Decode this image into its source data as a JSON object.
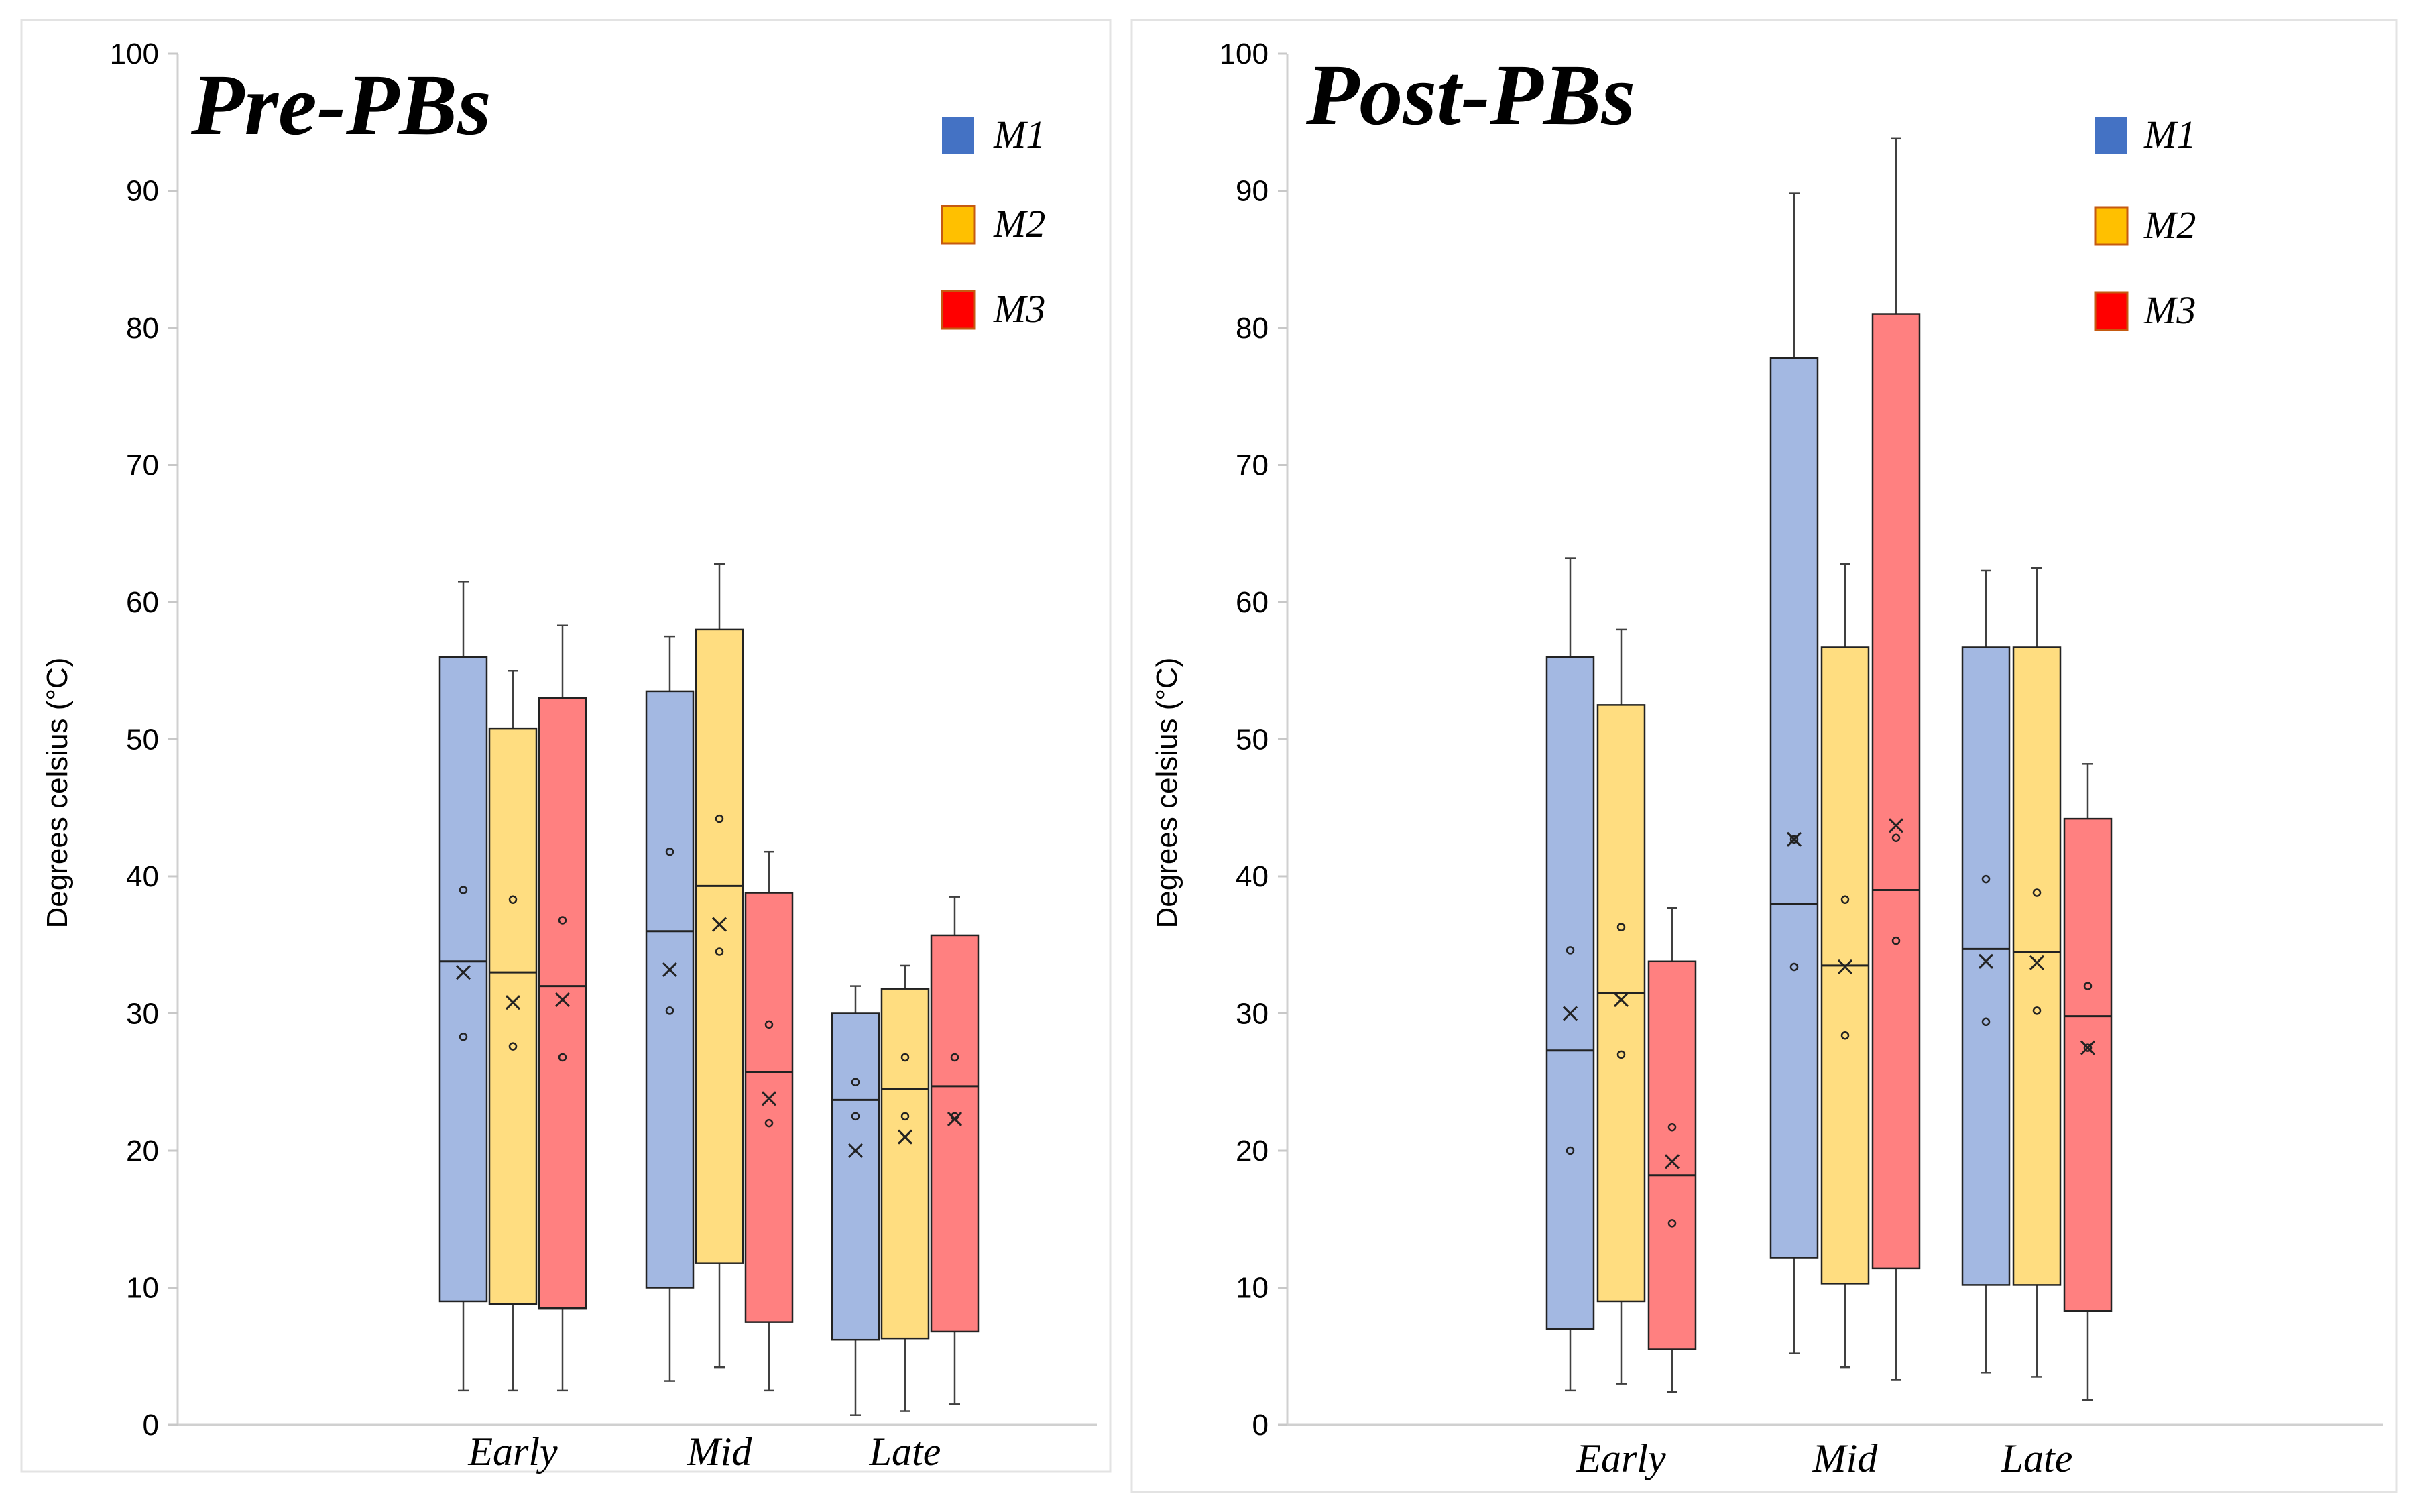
{
  "chart_data": [
    {
      "type": "box",
      "title": "Pre-PBs",
      "ylabel": "Degrees celsius (°C)",
      "ylim": [
        0,
        100
      ],
      "yticks": [
        "0",
        "10",
        "20",
        "30",
        "40",
        "50",
        "60",
        "70",
        "80",
        "90",
        "100"
      ],
      "categories": [
        "Early",
        "Mid",
        "Late"
      ],
      "legend": [
        "M1",
        "M2",
        "M3"
      ],
      "series": [
        {
          "name": "M1",
          "color": "#4472C4",
          "fill": "#A3B8E2",
          "boxes": [
            {
              "min": 2.5,
              "q1": 9,
              "median": 33.8,
              "q3": 56,
              "max": 61.5,
              "mean": 33,
              "points": [
                39,
                28.3
              ]
            },
            {
              "min": 3.2,
              "q1": 10,
              "median": 36,
              "q3": 53.5,
              "max": 57.5,
              "mean": 33.2,
              "points": [
                41.8,
                30.2
              ]
            },
            {
              "min": 0.7,
              "q1": 6.2,
              "median": 23.7,
              "q3": 30,
              "max": 32,
              "mean": 20,
              "points": [
                25,
                22.5
              ]
            }
          ]
        },
        {
          "name": "M2",
          "color": "#FFC000",
          "fill": "#FFDD80",
          "boxes": [
            {
              "min": 2.5,
              "q1": 8.8,
              "median": 33,
              "q3": 50.8,
              "max": 55,
              "mean": 30.8,
              "points": [
                38.3,
                27.6
              ]
            },
            {
              "min": 4.2,
              "q1": 11.8,
              "median": 39.3,
              "q3": 58,
              "max": 62.8,
              "mean": 36.5,
              "points": [
                44.2,
                34.5
              ]
            },
            {
              "min": 1,
              "q1": 6.3,
              "median": 24.5,
              "q3": 31.8,
              "max": 33.5,
              "mean": 21,
              "points": [
                26.8,
                22.5
              ]
            }
          ]
        },
        {
          "name": "M3",
          "color": "#FF0000",
          "fill": "#FF8080",
          "boxes": [
            {
              "min": 2.5,
              "q1": 8.5,
              "median": 32,
              "q3": 53,
              "max": 58.3,
              "mean": 31,
              "points": [
                36.8,
                26.8
              ]
            },
            {
              "min": 2.5,
              "q1": 7.5,
              "median": 25.7,
              "q3": 38.8,
              "max": 41.8,
              "mean": 23.8,
              "points": [
                29.2,
                22
              ]
            },
            {
              "min": 1.5,
              "q1": 6.8,
              "median": 24.7,
              "q3": 35.7,
              "max": 38.5,
              "mean": 22.3,
              "points": [
                26.8,
                22.5
              ]
            }
          ]
        }
      ]
    },
    {
      "type": "box",
      "title": "Post-PBs",
      "ylabel": "Degrees celsius (°C)",
      "ylim": [
        0,
        100
      ],
      "yticks": [
        "0",
        "10",
        "20",
        "30",
        "40",
        "50",
        "60",
        "70",
        "80",
        "90",
        "100"
      ],
      "categories": [
        "Early",
        "Mid",
        "Late"
      ],
      "legend": [
        "M1",
        "M2",
        "M3"
      ],
      "series": [
        {
          "name": "M1",
          "color": "#4472C4",
          "fill": "#A3B8E2",
          "boxes": [
            {
              "min": 2.5,
              "q1": 7,
              "median": 27.3,
              "q3": 56,
              "max": 63.2,
              "mean": 30,
              "points": [
                34.6,
                20
              ]
            },
            {
              "min": 5.2,
              "q1": 12.2,
              "median": 38,
              "q3": 77.8,
              "max": 89.8,
              "mean": 42.7,
              "points": [
                42.7,
                33.4
              ]
            },
            {
              "min": 3.8,
              "q1": 10.2,
              "median": 34.7,
              "q3": 56.7,
              "max": 62.3,
              "mean": 33.8,
              "points": [
                39.8,
                29.4
              ]
            }
          ]
        },
        {
          "name": "M2",
          "color": "#FFC000",
          "fill": "#FFDD80",
          "boxes": [
            {
              "min": 3,
              "q1": 9,
              "median": 31.5,
              "q3": 52.5,
              "max": 58,
              "mean": 31,
              "points": [
                36.3,
                27
              ]
            },
            {
              "min": 4.2,
              "q1": 10.3,
              "median": 33.5,
              "q3": 56.7,
              "max": 62.8,
              "mean": 33.4,
              "points": [
                38.3,
                28.4
              ]
            },
            {
              "min": 3.5,
              "q1": 10.2,
              "median": 34.5,
              "q3": 56.7,
              "max": 62.5,
              "mean": 33.7,
              "points": [
                38.8,
                30.2
              ]
            }
          ]
        },
        {
          "name": "M3",
          "color": "#FF0000",
          "fill": "#FF8080",
          "boxes": [
            {
              "min": 2.4,
              "q1": 5.5,
              "median": 18.2,
              "q3": 33.8,
              "max": 37.7,
              "mean": 19.2,
              "points": [
                21.7,
                14.7
              ]
            },
            {
              "min": 3.3,
              "q1": 11.4,
              "median": 39,
              "q3": 81,
              "max": 93.8,
              "mean": 43.7,
              "points": [
                42.8,
                35.3
              ]
            },
            {
              "min": 1.8,
              "q1": 8.3,
              "median": 29.8,
              "q3": 44.2,
              "max": 48.2,
              "mean": 27.5,
              "points": [
                32,
                27.5
              ]
            }
          ]
        }
      ]
    }
  ]
}
